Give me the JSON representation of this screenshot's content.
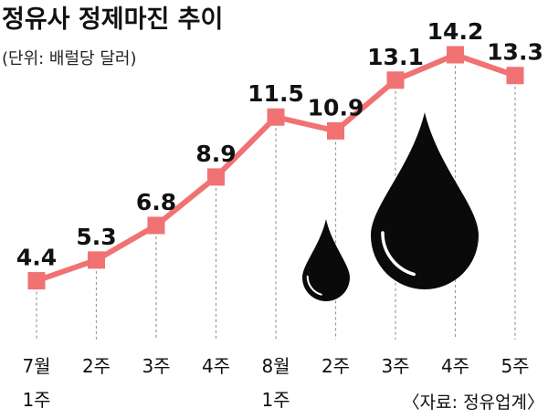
{
  "title": "정유사 정제마진 추이",
  "subtitle": "(단위: 배럴당 달러)",
  "source": "〈자료: 정유업계〉",
  "colors": {
    "line": "#f07272",
    "marker": "#f07272",
    "drop": "#0a0a0a"
  },
  "chart_data": {
    "type": "line",
    "categories": [
      [
        "7월",
        "1주"
      ],
      [
        "2주"
      ],
      [
        "3주"
      ],
      [
        "4주"
      ],
      [
        "8월",
        "1주"
      ],
      [
        "2주"
      ],
      [
        "3주"
      ],
      [
        "4주"
      ],
      [
        "5주"
      ]
    ],
    "values": [
      4.4,
      5.3,
      6.8,
      8.9,
      11.5,
      10.9,
      13.1,
      14.2,
      13.3
    ],
    "value_labels": [
      "4.4",
      "5.3",
      "6.8",
      "8.9",
      "11.5",
      "10.9",
      "13.1",
      "14.2",
      "13.3"
    ],
    "ylim": [
      2.8,
      14.2
    ],
    "grid": false,
    "legend": "none"
  }
}
